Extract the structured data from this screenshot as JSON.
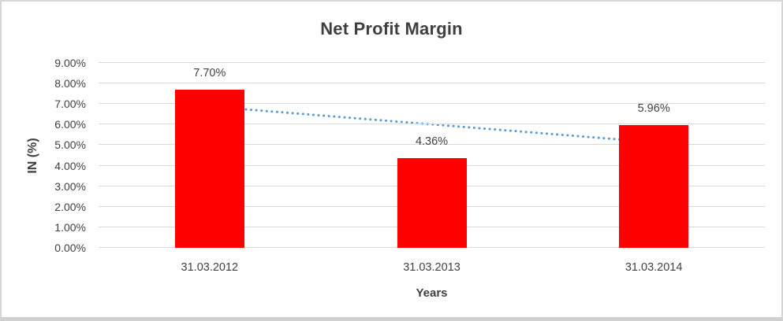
{
  "chart_data": {
    "type": "bar",
    "title": "Net Profit Margin",
    "xlabel": "Years",
    "ylabel": "IN (%)",
    "categories": [
      "31.03.2012",
      "31.03.2013",
      "31.03.2014"
    ],
    "values": [
      7.7,
      4.36,
      5.96
    ],
    "data_labels": [
      "7.70%",
      "4.36%",
      "5.96%"
    ],
    "ylim": [
      0,
      9
    ],
    "ytick_labels": [
      "0.00%",
      "1.00%",
      "2.00%",
      "3.00%",
      "4.00%",
      "5.00%",
      "6.00%",
      "7.00%",
      "8.00%",
      "9.00%"
    ],
    "grid": true,
    "legend": false,
    "colors": {
      "bar": "#FF0000",
      "gridline": "#D9D9D9",
      "text": "#404040",
      "title_text": "#3F3F3F",
      "trendline": "#5B9BD5",
      "frame_border": "#D6D6D6",
      "background": "#FFFFFF"
    },
    "trendline": {
      "type": "linear",
      "style": "dotted",
      "start_value": 6.88,
      "end_value": 5.14
    }
  }
}
